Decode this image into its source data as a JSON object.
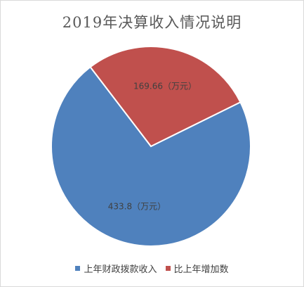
{
  "chart_data": {
    "type": "pie",
    "title": "2019年决算收入情况说明",
    "series": [
      {
        "name": "上年财政拨款收入",
        "value": 433.8,
        "label": "433.8（万元）",
        "color": "#4f81bd"
      },
      {
        "name": "比上年增加数",
        "value": 169.66,
        "label": "169.66（万元）",
        "color": "#c0504d"
      }
    ],
    "legend_position": "bottom"
  }
}
